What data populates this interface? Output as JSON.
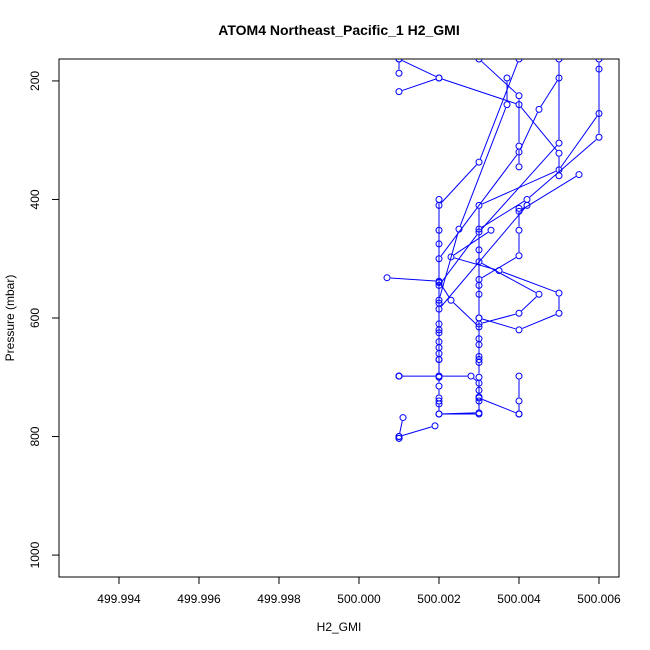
{
  "chart_data": {
    "type": "line",
    "title": "ATOM4 Northeast_Pacific_1 H2_GMI",
    "xlabel": "H2_GMI",
    "ylabel": "Pressure (mbar)",
    "xlim": [
      499.9925,
      500.0065
    ],
    "ylim": [
      1037,
      163
    ],
    "y_reversed": true,
    "x_ticks": [
      499.994,
      499.996,
      499.998,
      500.0,
      500.002,
      500.004,
      500.006
    ],
    "x_tick_labels": [
      "499.994",
      "499.996",
      "499.998",
      "500.000",
      "500.002",
      "500.004",
      "500.006"
    ],
    "y_ticks": [
      200,
      400,
      600,
      800,
      1000
    ],
    "y_tick_labels": [
      "200",
      "400",
      "600",
      "800",
      "1000"
    ],
    "grid": false,
    "series_color": "#0000ff",
    "series": [
      {
        "x": [
          500.001,
          500.002,
          500.001
        ],
        "y": [
          163,
          195,
          218
        ]
      },
      {
        "x": [
          500.001,
          500.001
        ],
        "y": [
          163,
          187
        ]
      },
      {
        "x": [
          500.002,
          500.004,
          500.005,
          500.005
        ],
        "y": [
          195,
          240,
          322,
          360
        ]
      },
      {
        "x": [
          500.003,
          500.004,
          500.004,
          500.004
        ],
        "y": [
          163,
          225,
          310,
          345
        ]
      },
      {
        "x": [
          500.004,
          500.003,
          500.002,
          500.002,
          500.002
        ],
        "y": [
          163,
          337,
          410,
          475,
          540
        ]
      },
      {
        "x": [
          500.0037,
          500.0037,
          500.0025,
          500.002,
          500.002
        ],
        "y": [
          195,
          240,
          450,
          570,
          670
        ]
      },
      {
        "x": [
          500.005,
          500.0045,
          500.004,
          500.002,
          500.002
        ],
        "y": [
          195,
          248,
          320,
          500,
          700
        ]
      },
      {
        "x": [
          500.006,
          500.006,
          500.005,
          500.003,
          500.003
        ],
        "y": [
          180,
          255,
          350,
          410,
          600
        ]
      },
      {
        "x": [
          500.006,
          500.006,
          500.0042,
          500.003,
          500.003
        ],
        "y": [
          163,
          295,
          400,
          450,
          560
        ]
      },
      {
        "x": [
          500.005,
          500.005,
          500.003,
          500.002,
          500.002
        ],
        "y": [
          163,
          305,
          455,
          545,
          620
        ]
      },
      {
        "x": [
          500.0055,
          500.004,
          500.0042,
          500.002,
          500.002
        ],
        "y": [
          358,
          420,
          410,
          585,
          650
        ]
      },
      {
        "x": [
          500.002,
          500.002,
          500.002,
          500.002,
          500.002,
          500.002
        ],
        "y": [
          400,
          452,
          540,
          575,
          610,
          660
        ]
      },
      {
        "x": [
          500.004,
          500.004,
          500.004,
          500.003,
          500.003
        ],
        "y": [
          415,
          452,
          495,
          535,
          545
        ]
      },
      {
        "x": [
          500.0033,
          500.0023,
          500.0035,
          500.005,
          500.005,
          500.004,
          500.003,
          500.003
        ],
        "y": [
          452,
          497,
          520,
          558,
          592,
          620,
          600,
          675
        ]
      },
      {
        "x": [
          500.0007,
          500.002,
          500.0023,
          500.003,
          500.003,
          500.003
        ],
        "y": [
          532,
          538,
          570,
          615,
          635,
          665
        ]
      },
      {
        "x": [
          500.003,
          500.003,
          500.0045,
          500.004,
          500.003,
          500.003
        ],
        "y": [
          485,
          505,
          560,
          592,
          610,
          645
        ]
      },
      {
        "x": [
          500.002,
          500.002,
          500.002,
          500.002,
          500.002,
          500.002
        ],
        "y": [
          625,
          640,
          670,
          698,
          715,
          735
        ]
      },
      {
        "x": [
          500.001,
          500.002,
          500.0028,
          500.003,
          500.003
        ],
        "y": [
          698,
          698,
          698,
          710,
          722
        ]
      },
      {
        "x": [
          500.001,
          500.001
        ],
        "y": [
          698,
          698
        ]
      },
      {
        "x": [
          500.002,
          500.002,
          500.003,
          500.003,
          500.004
        ],
        "y": [
          740,
          762,
          762,
          735,
          762
        ]
      },
      {
        "x": [
          500.004,
          500.004,
          500.004
        ],
        "y": [
          698,
          740,
          762
        ]
      },
      {
        "x": [
          500.002,
          500.002,
          500.003,
          500.003
        ],
        "y": [
          745,
          762,
          760,
          740
        ]
      },
      {
        "x": [
          500.0011,
          500.001,
          500.001
        ],
        "y": [
          768,
          800,
          803
        ]
      },
      {
        "x": [
          500.0019,
          500.001,
          500.001
        ],
        "y": [
          782,
          800,
          803
        ]
      },
      {
        "x": [
          500.003,
          500.003,
          500.003
        ],
        "y": [
          670,
          700,
          733
        ]
      }
    ]
  }
}
